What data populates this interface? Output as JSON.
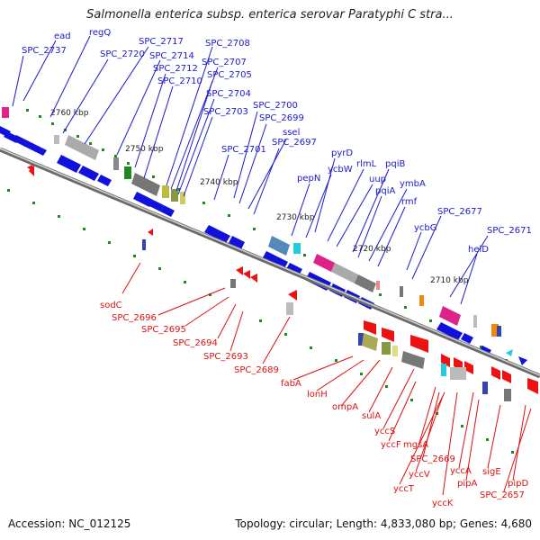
{
  "title": "Salmonella enterica subsp. enterica serovar Paratyphi C stra...",
  "accession": "Accession: NC_012125",
  "summary": "Topology: circular; Length: 4,833,080 bp; Genes: 4,680",
  "kbp_labels": [
    "2760 kbp",
    "2750 kbp",
    "2740 kbp",
    "2730 kbp",
    "2720 kbp",
    "2710 kbp"
  ],
  "forward_genes": [
    "ead",
    "SPC_2737",
    "regQ",
    "SPC_2720",
    "SPC_2717",
    "SPC_2714",
    "SPC_2712",
    "SPC_2710",
    "SPC_2708",
    "SPC_2707",
    "SPC_2705",
    "SPC_2704",
    "SPC_2703",
    "SPC_2700",
    "SPC_2699",
    "ssel",
    "SPC_2697",
    "SPC_2701",
    "pyrD",
    "ycbW",
    "pepN",
    "rlmL",
    "uup",
    "pqiB",
    "pqiA",
    "ymbA",
    "rmf",
    "ycbG",
    "SPC_2677",
    "SPC_2671",
    "helD"
  ],
  "reverse_genes": [
    "sodC",
    "SPC_2696",
    "SPC_2695",
    "SPC_2694",
    "SPC_2693",
    "SPC_2689",
    "fabA",
    "lonH",
    "ompA",
    "sulA",
    "yccS",
    "yccF",
    "mgsA",
    "SPC_2669",
    "yccV",
    "yccT",
    "yccK",
    "yccA",
    "pipA",
    "sigE",
    "pipD",
    "SPC_2657"
  ],
  "colors": {
    "forward_label": "#1a1acc",
    "reverse_label": "#dd1111",
    "forward_gene": "#1111dd",
    "reverse_gene": "#ee1111",
    "backbone": "#888888",
    "tick": "#228822"
  }
}
